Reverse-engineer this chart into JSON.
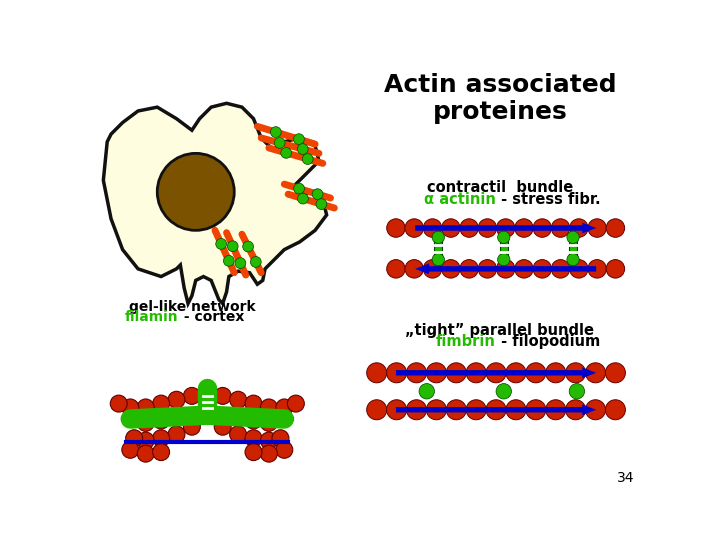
{
  "title": "Actin associated\nproteines",
  "title_fontsize": 18,
  "bg_color": "#ffffff",
  "cell_color": "#fffde0",
  "cell_border": "#111111",
  "nucleus_color": "#7a5200",
  "actin_color": "#ee4400",
  "dot_color": "#cc2200",
  "green_color": "#22bb00",
  "blue_color": "#0000cc",
  "text1": "contractil  bundle",
  "text2_part1": "α actinin",
  "text2_part2": " - stress fibr.",
  "text3": "gel-like network",
  "text4_part1": "filamin",
  "text4_part2": " - cortex",
  "text5_part1": "„tight” parallel bundle",
  "text5_part2": "fimbrin",
  "text5_part3": " - filopodium",
  "page_num": "34"
}
